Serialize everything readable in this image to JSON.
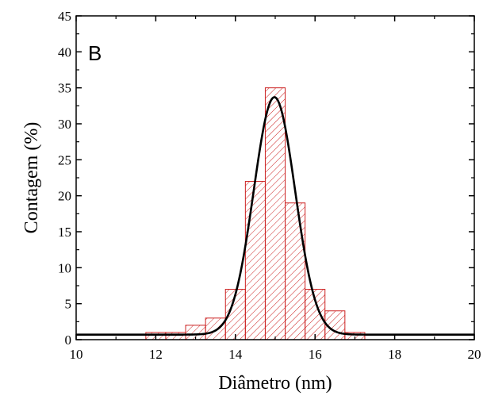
{
  "chart_data": {
    "type": "bar",
    "panel_label": "B",
    "xlabel": "Diâmetro (nm)",
    "ylabel": "Contagem (%)",
    "xlim": [
      10,
      20
    ],
    "ylim": [
      0,
      45
    ],
    "x_ticks": [
      "10",
      "12",
      "14",
      "16",
      "18",
      "20"
    ],
    "y_ticks": [
      "0",
      "5",
      "10",
      "15",
      "20",
      "25",
      "30",
      "35",
      "40",
      "45"
    ],
    "bin_width": 0.5,
    "bins": [
      {
        "start": 11.75,
        "value": 1
      },
      {
        "start": 12.25,
        "value": 1
      },
      {
        "start": 12.75,
        "value": 2
      },
      {
        "start": 13.25,
        "value": 3
      },
      {
        "start": 13.75,
        "value": 7
      },
      {
        "start": 14.25,
        "value": 22
      },
      {
        "start": 14.75,
        "value": 35
      },
      {
        "start": 15.25,
        "value": 19
      },
      {
        "start": 15.75,
        "value": 7
      },
      {
        "start": 16.25,
        "value": 4
      },
      {
        "start": 16.75,
        "value": 1
      }
    ],
    "fit": {
      "type": "gaussian",
      "baseline": 0.7,
      "amplitude": 33,
      "center": 14.98,
      "sigma": 0.52
    },
    "colors": {
      "bar_edge": "#cc2222",
      "hatch": "#cc2222",
      "fit_line": "#000000",
      "axis": "#000000"
    },
    "grid": false
  }
}
